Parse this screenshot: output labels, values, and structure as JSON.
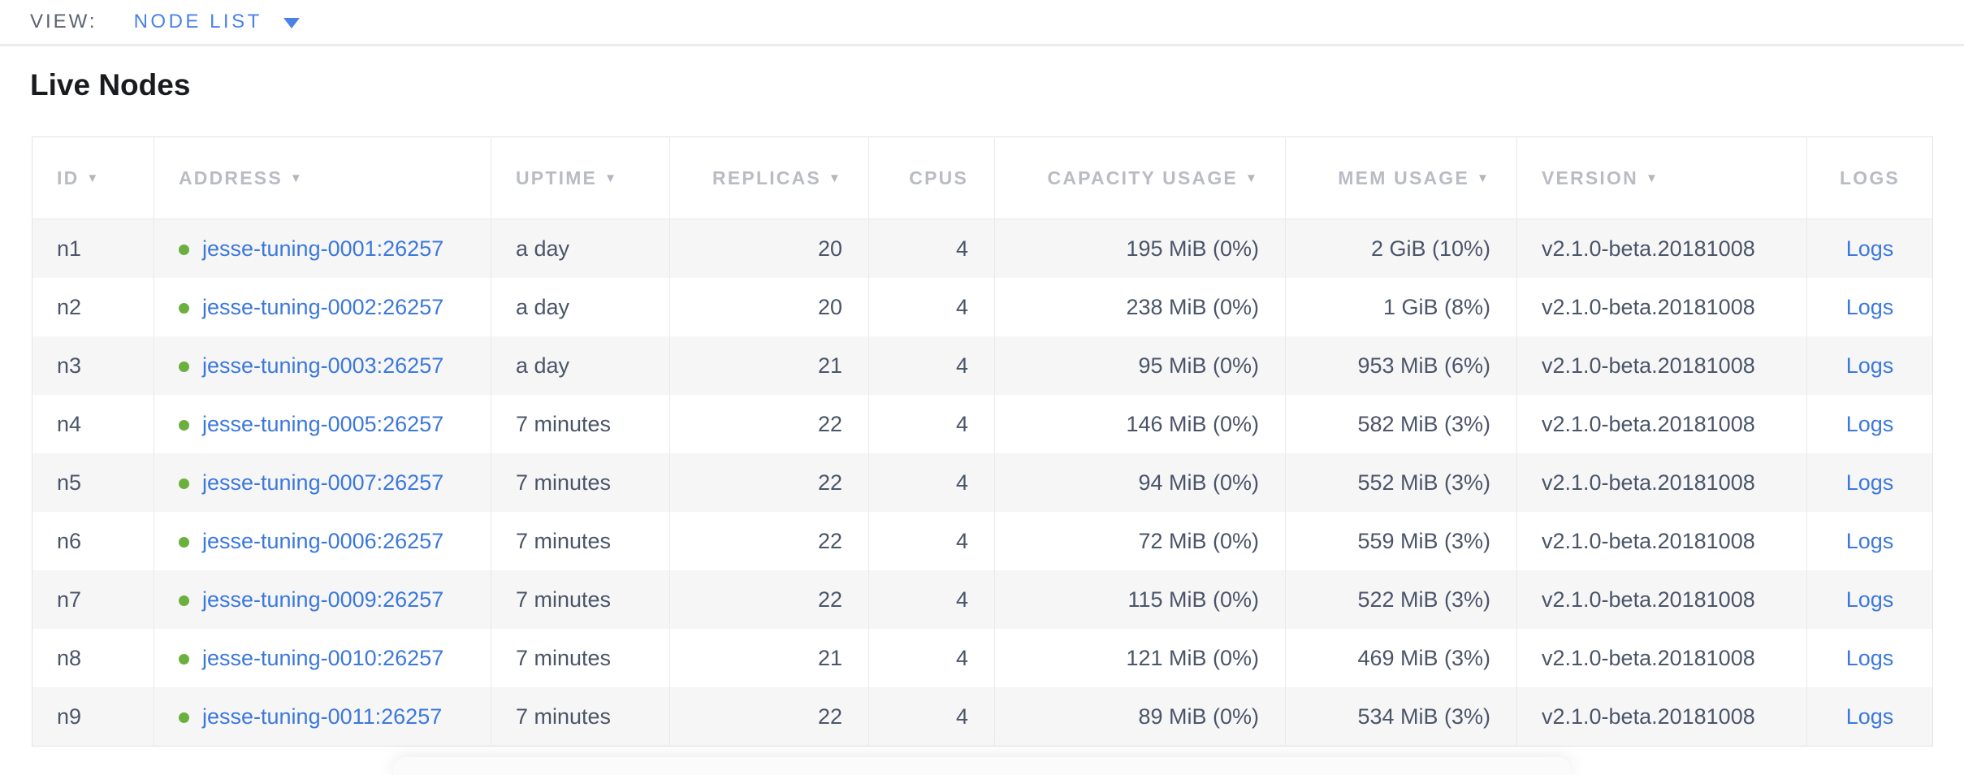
{
  "view_bar": {
    "label": "VIEW:",
    "selected": "NODE LIST"
  },
  "page": {
    "title": "Live Nodes"
  },
  "icons": {
    "sort_arrow": "▼",
    "node_live_dot": "live-status-dot"
  },
  "colors": {
    "accent_blue": "#4a82e8",
    "link_blue": "#3c78dc",
    "live_green": "#6bb03e",
    "header_gray": "#b9bcc3",
    "zebra_row": "#f6f6f7"
  },
  "table": {
    "columns": [
      {
        "key": "id",
        "label": "ID",
        "sorted": true
      },
      {
        "key": "address",
        "label": "ADDRESS",
        "sorted": true
      },
      {
        "key": "uptime",
        "label": "UPTIME",
        "sorted": true
      },
      {
        "key": "replicas",
        "label": "REPLICAS",
        "sorted": true
      },
      {
        "key": "cpus",
        "label": "CPUS",
        "sorted": false
      },
      {
        "key": "capacity_usage",
        "label": "CAPACITY USAGE",
        "sorted": true
      },
      {
        "key": "mem_usage",
        "label": "MEM USAGE",
        "sorted": true
      },
      {
        "key": "version",
        "label": "VERSION",
        "sorted": true
      },
      {
        "key": "logs",
        "label": "LOGS",
        "sorted": false
      }
    ],
    "rows": [
      {
        "id": "n1",
        "status": "live",
        "address": "jesse-tuning-0001:26257",
        "uptime": "a day",
        "replicas": "20",
        "cpus": "4",
        "capacity_usage": "195 MiB (0%)",
        "mem_usage": "2 GiB (10%)",
        "version": "v2.1.0-beta.20181008",
        "logs": "Logs"
      },
      {
        "id": "n2",
        "status": "live",
        "address": "jesse-tuning-0002:26257",
        "uptime": "a day",
        "replicas": "20",
        "cpus": "4",
        "capacity_usage": "238 MiB (0%)",
        "mem_usage": "1 GiB (8%)",
        "version": "v2.1.0-beta.20181008",
        "logs": "Logs"
      },
      {
        "id": "n3",
        "status": "live",
        "address": "jesse-tuning-0003:26257",
        "uptime": "a day",
        "replicas": "21",
        "cpus": "4",
        "capacity_usage": "95 MiB (0%)",
        "mem_usage": "953 MiB (6%)",
        "version": "v2.1.0-beta.20181008",
        "logs": "Logs"
      },
      {
        "id": "n4",
        "status": "live",
        "address": "jesse-tuning-0005:26257",
        "uptime": "7 minutes",
        "replicas": "22",
        "cpus": "4",
        "capacity_usage": "146 MiB (0%)",
        "mem_usage": "582 MiB (3%)",
        "version": "v2.1.0-beta.20181008",
        "logs": "Logs"
      },
      {
        "id": "n5",
        "status": "live",
        "address": "jesse-tuning-0007:26257",
        "uptime": "7 minutes",
        "replicas": "22",
        "cpus": "4",
        "capacity_usage": "94 MiB (0%)",
        "mem_usage": "552 MiB (3%)",
        "version": "v2.1.0-beta.20181008",
        "logs": "Logs"
      },
      {
        "id": "n6",
        "status": "live",
        "address": "jesse-tuning-0006:26257",
        "uptime": "7 minutes",
        "replicas": "22",
        "cpus": "4",
        "capacity_usage": "72 MiB (0%)",
        "mem_usage": "559 MiB (3%)",
        "version": "v2.1.0-beta.20181008",
        "logs": "Logs"
      },
      {
        "id": "n7",
        "status": "live",
        "address": "jesse-tuning-0009:26257",
        "uptime": "7 minutes",
        "replicas": "22",
        "cpus": "4",
        "capacity_usage": "115 MiB (0%)",
        "mem_usage": "522 MiB (3%)",
        "version": "v2.1.0-beta.20181008",
        "logs": "Logs"
      },
      {
        "id": "n8",
        "status": "live",
        "address": "jesse-tuning-0010:26257",
        "uptime": "7 minutes",
        "replicas": "21",
        "cpus": "4",
        "capacity_usage": "121 MiB (0%)",
        "mem_usage": "469 MiB (3%)",
        "version": "v2.1.0-beta.20181008",
        "logs": "Logs"
      },
      {
        "id": "n9",
        "status": "live",
        "address": "jesse-tuning-0011:26257",
        "uptime": "7 minutes",
        "replicas": "22",
        "cpus": "4",
        "capacity_usage": "89 MiB (0%)",
        "mem_usage": "534 MiB (3%)",
        "version": "v2.1.0-beta.20181008",
        "logs": "Logs"
      }
    ]
  }
}
